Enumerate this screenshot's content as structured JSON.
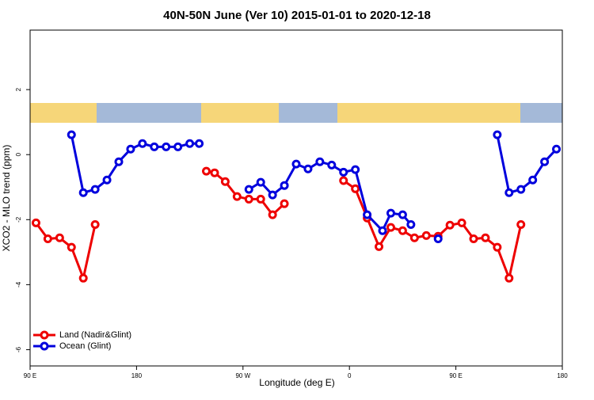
{
  "chart_data": {
    "type": "line",
    "title": "40N-50N June (Ver 10)   2015-01-01 to 2020-12-18",
    "xlabel": "Longitude (deg E)",
    "ylabel": "XCO2 - MLO trend (ppm)",
    "xlim": [
      90,
      540
    ],
    "ylim": [
      -6.5,
      3.83
    ],
    "xticks": [
      {
        "value": 90,
        "label": "90 E"
      },
      180,
      {
        "value": 270,
        "label": "90 W"
      },
      {
        "value": 360,
        "label": "0"
      },
      {
        "value": 450,
        "label": "90 E"
      },
      {
        "value": 540,
        "label": "180"
      }
    ],
    "yticks": [
      -6,
      -4,
      -2,
      0,
      2
    ],
    "legend": "bottom-left",
    "series": [
      {
        "name": "Land (Nadir&Glint)",
        "color": "#ee0000",
        "x": [
          95,
          105,
          115,
          125,
          135,
          145,
          190,
          239,
          246,
          255,
          265,
          275,
          285,
          295,
          305,
          330,
          355,
          365,
          375,
          385,
          395,
          405,
          415,
          425,
          435,
          445,
          455,
          465,
          475,
          485,
          495,
          505
        ],
        "values": [
          -2.1,
          -2.59,
          -2.56,
          -2.85,
          -3.8,
          -2.15,
          null,
          -0.51,
          -0.56,
          -0.83,
          -1.29,
          -1.37,
          -1.37,
          -1.85,
          -1.51,
          null,
          -0.8,
          -1.05,
          -1.95,
          -2.83,
          -2.24,
          -2.34,
          -2.56,
          -2.49,
          -2.51,
          -2.17,
          -2.1,
          -2.59,
          -2.56,
          -2.85,
          -3.8,
          -2.15
        ]
      },
      {
        "name": "Ocean (Glint)",
        "color": "#0000dd",
        "x": [
          125,
          135,
          145,
          155,
          165,
          175,
          185,
          195,
          205,
          215,
          225,
          233,
          255,
          275,
          285,
          295,
          305,
          315,
          325,
          335,
          345,
          355,
          365,
          375,
          388,
          395,
          405,
          412,
          425,
          435,
          460,
          485,
          495,
          505,
          515,
          525,
          535
        ],
        "values": [
          0.61,
          -1.17,
          -1.07,
          -0.78,
          -0.22,
          0.17,
          0.34,
          0.24,
          0.24,
          0.24,
          0.34,
          0.34,
          null,
          -1.07,
          -0.85,
          -1.24,
          -0.95,
          -0.29,
          -0.44,
          -0.22,
          -0.32,
          -0.54,
          -0.46,
          -1.85,
          -2.34,
          -1.8,
          -1.85,
          -2.15,
          null,
          -2.59,
          null,
          0.61,
          -1.17,
          -1.07,
          -0.78,
          -0.22,
          0.17
        ]
      }
    ]
  }
}
